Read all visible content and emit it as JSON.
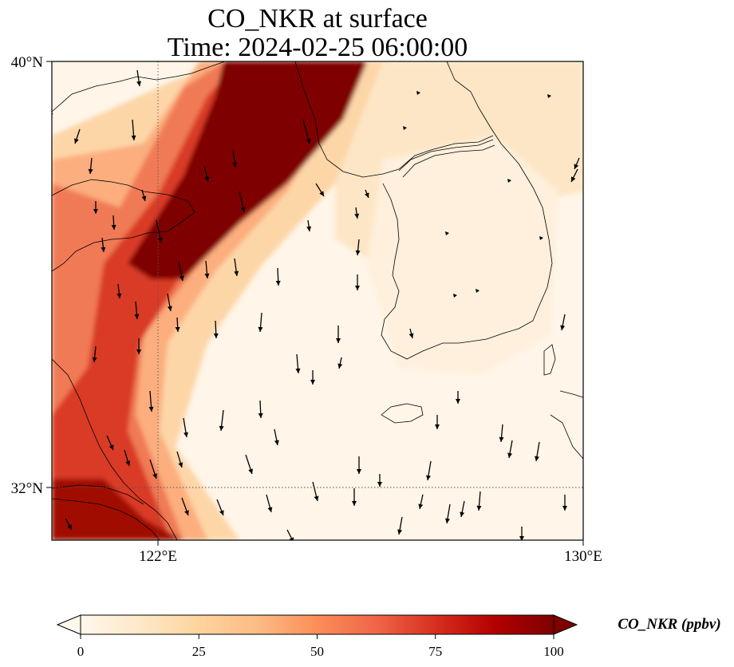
{
  "title": {
    "line1": "CO_NKR at surface",
    "line2": "Time: 2024-02-25 06:00:00"
  },
  "axes": {
    "y_ticks": [
      {
        "value": 40,
        "label": "40°N"
      },
      {
        "value": 32,
        "label": "32°N"
      }
    ],
    "x_ticks": [
      {
        "value": 122,
        "label": "122°E"
      },
      {
        "value": 130,
        "label": "130°E"
      }
    ],
    "lon_range": [
      120,
      130
    ],
    "lat_range": [
      31,
      40
    ]
  },
  "colorbar": {
    "label": "CO_NKR (ppbv)",
    "ticks": [
      {
        "value": 0,
        "label": "0"
      },
      {
        "value": 25,
        "label": "25"
      },
      {
        "value": 50,
        "label": "50"
      },
      {
        "value": 75,
        "label": "75"
      },
      {
        "value": 100,
        "label": "100"
      }
    ],
    "range": [
      0,
      100
    ],
    "extend": "both",
    "colormap": "OrRd",
    "colors": [
      "#fff7ec",
      "#fee8c8",
      "#fdd49e",
      "#fdbb84",
      "#fc8d59",
      "#ef6548",
      "#d7301f",
      "#b30000",
      "#7f0000"
    ]
  },
  "gridlines": {
    "style": "dotted",
    "lons": [
      122
    ],
    "lats": [
      32
    ]
  }
}
